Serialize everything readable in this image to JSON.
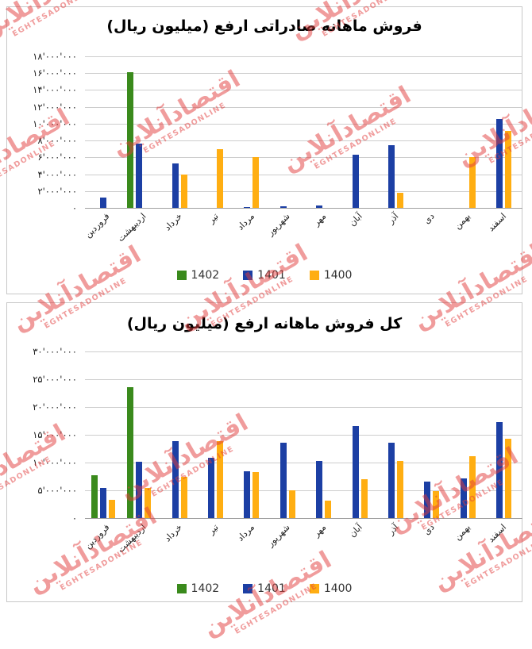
{
  "watermark": {
    "fa": "اقتصادآنلاین",
    "en": "EGHTESADONLINE",
    "color": "#e23c3c"
  },
  "chart_data": [
    {
      "type": "bar",
      "title": "فروش ماهانه صادراتی ارفع (میلیون ریال)",
      "categories": [
        "فروردین",
        "اردیبهشت",
        "خرداد",
        "تیر",
        "مرداد",
        "شهریور",
        "مهر",
        "آبان",
        "آذر",
        "دی",
        "بهمن",
        "اسفند"
      ],
      "series": [
        {
          "name": "1402",
          "color": "#3a8a1c",
          "values": [
            0,
            16100000,
            0,
            0,
            0,
            0,
            0,
            0,
            0,
            0,
            0,
            0
          ]
        },
        {
          "name": "1401",
          "color": "#1c3fa4",
          "values": [
            1200000,
            7600000,
            5300000,
            0,
            100000,
            150000,
            300000,
            6300000,
            7400000,
            0,
            0,
            10600000
          ]
        },
        {
          "name": "1400",
          "color": "#ffae12",
          "values": [
            0,
            0,
            3950000,
            7000000,
            6050000,
            0,
            0,
            0,
            1800000,
            0,
            6000000,
            9100000
          ]
        }
      ],
      "ylim": [
        0,
        18000000
      ],
      "ytick_step": 2000000,
      "ytick_labels_topdown": [
        "۱۸'۰۰۰'۰۰۰",
        "۱۶'۰۰۰'۰۰۰",
        "۱۴'۰۰۰'۰۰۰",
        "۱۲'۰۰۰'۰۰۰",
        "۱۰'۰۰۰'۰۰۰",
        "۸'۰۰۰'۰۰۰",
        "۶'۰۰۰'۰۰۰",
        "۴'۰۰۰'۰۰۰",
        "۲'۰۰۰'۰۰۰",
        "۰"
      ],
      "legend": [
        "1402",
        "1401",
        "1400"
      ],
      "legend_position": "bottom",
      "grid": "horizontal"
    },
    {
      "type": "bar",
      "title": "کل فروش ماهانه ارفع (میلیون ریال)",
      "categories": [
        "فروردین",
        "اردیبهشت",
        "خرداد",
        "تیر",
        "مرداد",
        "شهریور",
        "مهر",
        "آبان",
        "آذر",
        "دی",
        "بهمن",
        "اسفند"
      ],
      "series": [
        {
          "name": "1402",
          "color": "#3a8a1c",
          "values": [
            7700000,
            23600000,
            0,
            0,
            0,
            0,
            0,
            0,
            0,
            0,
            0,
            0
          ]
        },
        {
          "name": "1401",
          "color": "#1c3fa4",
          "values": [
            5400000,
            10100000,
            13800000,
            10900000,
            8400000,
            13500000,
            10300000,
            16500000,
            13500000,
            6600000,
            7100000,
            17300000
          ]
        },
        {
          "name": "1400",
          "color": "#ffae12",
          "values": [
            3300000,
            5400000,
            7400000,
            13900000,
            8300000,
            5000000,
            3100000,
            7000000,
            10300000,
            4800000,
            11100000,
            14300000
          ]
        }
      ],
      "ylim": [
        0,
        30000000
      ],
      "ytick_step": 5000000,
      "ytick_labels_topdown": [
        "۳۰'۰۰۰'۰۰۰",
        "۲۵'۰۰۰'۰۰۰",
        "۲۰'۰۰۰'۰۰۰",
        "۱۵'۰۰۰'۰۰۰",
        "۱۰'۰۰۰'۰۰۰",
        "۵'۰۰۰'۰۰۰",
        "۰"
      ],
      "legend": [
        "1402",
        "1401",
        "1400"
      ],
      "legend_position": "bottom",
      "grid": "horizontal"
    }
  ]
}
